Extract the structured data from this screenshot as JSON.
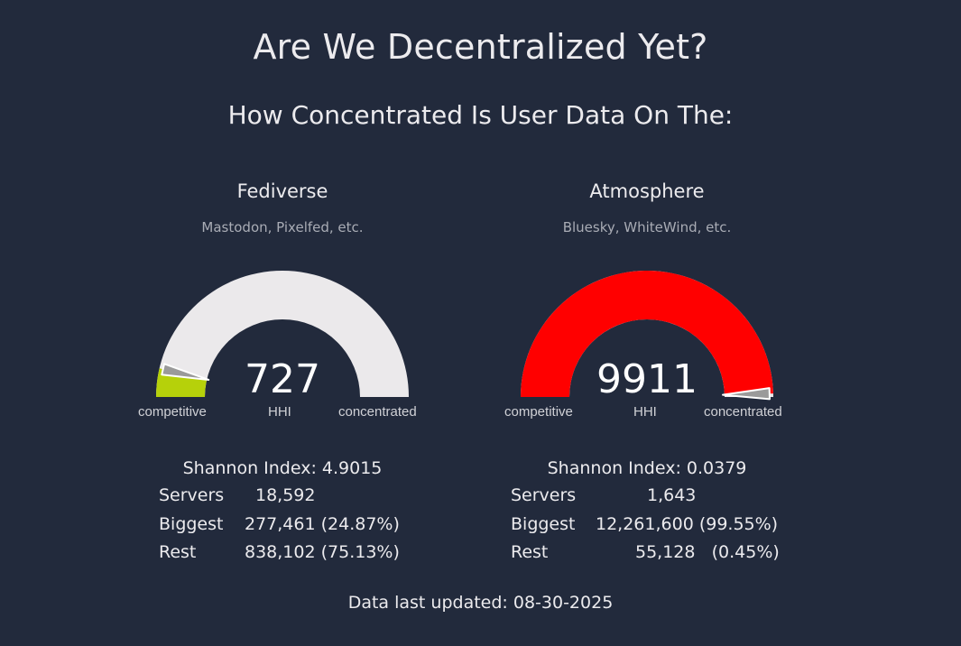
{
  "header": {
    "title": "Are We Decentralized Yet?",
    "subtitle": "How Concentrated Is User Data On The:"
  },
  "panels": [
    {
      "name": "Fediverse",
      "description": "Mastodon, Pixelfed, etc.",
      "hhi": "727",
      "hhi_fraction": 0.0727,
      "fill_color": "#b6d10a",
      "labels": {
        "left": "competitive",
        "center": "HHI",
        "right": "concentrated"
      },
      "shannon": "Shannon Index: 4.9015",
      "servers_label": "Servers",
      "servers_value": "18,592",
      "biggest_label": "Biggest",
      "biggest_value": "277,461 (24.87%)",
      "rest_label": "Rest",
      "rest_value": "838,102 (75.13%)"
    },
    {
      "name": "Atmosphere",
      "description": "Bluesky, WhiteWind, etc.",
      "hhi": "9911",
      "hhi_fraction": 0.9911,
      "fill_color": "#ff0000",
      "labels": {
        "left": "competitive",
        "center": "HHI",
        "right": "concentrated"
      },
      "shannon": "Shannon Index: 0.0379",
      "servers_label": "Servers",
      "servers_value": "1,643",
      "biggest_label": "Biggest",
      "biggest_value": "12,261,600 (99.55%)",
      "rest_label": "Rest",
      "rest_value": "55,128   (0.45%)"
    }
  ],
  "footer": {
    "updated": "Data last updated: 08-30-2025"
  },
  "colors": {
    "background": "#222a3c",
    "gauge_track": "#ebe9eb",
    "needle": "#9a9a9a"
  }
}
